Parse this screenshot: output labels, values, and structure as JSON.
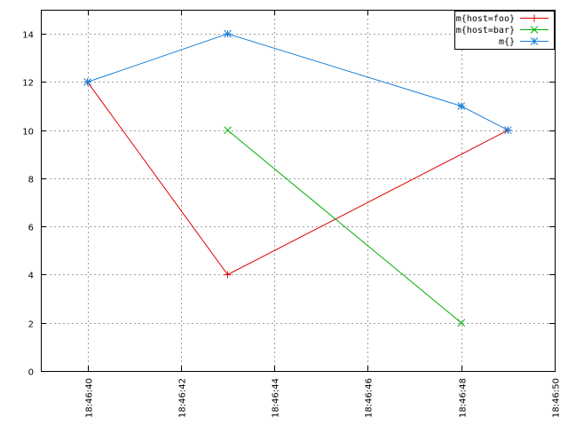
{
  "chart_data": {
    "type": "line",
    "title": "",
    "xlabel": "",
    "ylabel": "",
    "x_type": "time",
    "xlim": [
      "18:46:39",
      "18:46:50"
    ],
    "ylim": [
      0,
      15
    ],
    "x_ticks": [
      "18:46:40",
      "18:46:42",
      "18:46:44",
      "18:46:46",
      "18:46:48",
      "18:46:50"
    ],
    "y_ticks": [
      0,
      2,
      4,
      6,
      8,
      10,
      12,
      14
    ],
    "grid": true,
    "legend_position": "top-right",
    "series": [
      {
        "name": "m{host=foo}",
        "color": "#e00000",
        "marker": "plus",
        "points": [
          {
            "x": "18:46:40",
            "y": 12
          },
          {
            "x": "18:46:43",
            "y": 4
          },
          {
            "x": "18:46:49",
            "y": 10
          }
        ]
      },
      {
        "name": "m{host=bar}",
        "color": "#00b000",
        "marker": "cross",
        "points": [
          {
            "x": "18:46:43",
            "y": 10
          },
          {
            "x": "18:46:48",
            "y": 2
          }
        ]
      },
      {
        "name": "m{}",
        "color": "#1a80d8",
        "marker": "star",
        "points": [
          {
            "x": "18:46:40",
            "y": 12
          },
          {
            "x": "18:46:43",
            "y": 14
          },
          {
            "x": "18:46:48",
            "y": 11
          },
          {
            "x": "18:46:49",
            "y": 10
          }
        ]
      }
    ]
  }
}
